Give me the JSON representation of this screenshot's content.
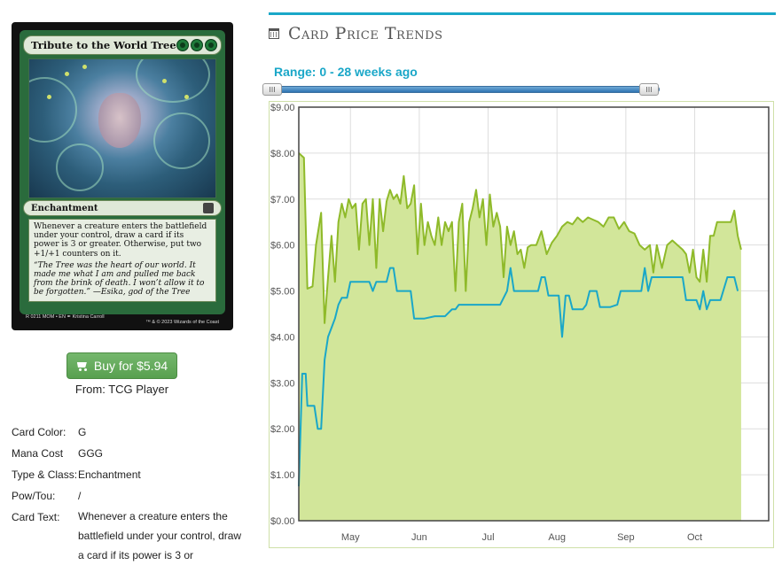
{
  "card_image": {
    "title": "Tribute to the World Tree",
    "type_line": "Enchantment",
    "rules_text": "Whenever a creature enters the battlefield under your control, draw a card if its power is 3 or greater. Otherwise, put two +1/+1 counters on it.",
    "flavor_text": "“The Tree was the heart of our world. It made me what I am and pulled me back from the brink of death. I won’t allow it to be forgotten.” —Esika, god of the Tree",
    "footer_left": "R 0211 MOM • EN ✒ Kristina Carroll",
    "footer_right": "™ & © 2023 Wizards of the Coast"
  },
  "buy": {
    "label": "Buy for $5.94",
    "source": "From: TCG Player",
    "button_color": "#5fa857"
  },
  "details": [
    {
      "key": "Card Color:",
      "value": "G"
    },
    {
      "key": "Mana Cost",
      "value": "GGG"
    },
    {
      "key": "Type & Class:",
      "value": "Enchantment"
    },
    {
      "key": "Pow/Tou:",
      "value": "/"
    },
    {
      "key": "Card Text:",
      "value": "Whenever a creature enters the battlefield under your control, draw a card if its power is 3 or"
    }
  ],
  "panel": {
    "title": "Card Price Trends",
    "range_text": "Range: 0 - 28 weeks ago",
    "accent": "#1aa7c8",
    "slider_min_weeks": 0,
    "slider_max_weeks": 28
  },
  "chart_data": {
    "type": "area",
    "ylim": [
      0,
      9
    ],
    "y_ticks": [
      "$0.00",
      "$1.00",
      "$2.00",
      "$3.00",
      "$4.00",
      "$5.00",
      "$6.00",
      "$7.00",
      "$8.00",
      "$9.00"
    ],
    "x_ticks": [
      {
        "label": "May",
        "x": 0.5
      },
      {
        "label": "Jun",
        "x": 4.5
      },
      {
        "label": "Jul",
        "x": 8.5
      },
      {
        "label": "Aug",
        "x": 12.5
      },
      {
        "label": "Sep",
        "x": 16.5
      },
      {
        "label": "Oct",
        "x": 20.5
      }
    ],
    "x_range": [
      -2.5,
      24.8
    ],
    "grid": true,
    "series": [
      {
        "color": "#8fba2a",
        "fill": "#d2e69a",
        "points": [
          [
            -2.5,
            8.0
          ],
          [
            -2.2,
            7.9
          ],
          [
            -2.0,
            5.05
          ],
          [
            -1.7,
            5.1
          ],
          [
            -1.5,
            6.0
          ],
          [
            -1.2,
            6.7
          ],
          [
            -1.0,
            4.3
          ],
          [
            -0.8,
            5.3
          ],
          [
            -0.6,
            6.2
          ],
          [
            -0.4,
            5.2
          ],
          [
            -0.2,
            6.5
          ],
          [
            0.0,
            6.9
          ],
          [
            0.2,
            6.6
          ],
          [
            0.4,
            7.0
          ],
          [
            0.6,
            6.8
          ],
          [
            0.8,
            6.9
          ],
          [
            1.0,
            5.9
          ],
          [
            1.2,
            6.9
          ],
          [
            1.4,
            7.0
          ],
          [
            1.6,
            6.0
          ],
          [
            1.8,
            7.0
          ],
          [
            2.0,
            5.5
          ],
          [
            2.2,
            7.0
          ],
          [
            2.4,
            6.3
          ],
          [
            2.6,
            6.95
          ],
          [
            2.8,
            7.2
          ],
          [
            3.0,
            7.0
          ],
          [
            3.2,
            7.1
          ],
          [
            3.4,
            6.9
          ],
          [
            3.6,
            7.5
          ],
          [
            3.8,
            6.8
          ],
          [
            4.0,
            6.9
          ],
          [
            4.2,
            7.3
          ],
          [
            4.4,
            5.8
          ],
          [
            4.6,
            6.9
          ],
          [
            4.8,
            6.0
          ],
          [
            5.0,
            6.5
          ],
          [
            5.2,
            6.2
          ],
          [
            5.4,
            6.0
          ],
          [
            5.6,
            6.6
          ],
          [
            5.8,
            6.0
          ],
          [
            6.0,
            6.5
          ],
          [
            6.2,
            6.3
          ],
          [
            6.4,
            6.5
          ],
          [
            6.6,
            5.0
          ],
          [
            6.8,
            6.5
          ],
          [
            7.0,
            6.9
          ],
          [
            7.2,
            5.0
          ],
          [
            7.4,
            6.5
          ],
          [
            7.6,
            6.8
          ],
          [
            7.8,
            7.2
          ],
          [
            8.0,
            6.6
          ],
          [
            8.2,
            7.0
          ],
          [
            8.4,
            6.0
          ],
          [
            8.6,
            7.1
          ],
          [
            8.8,
            6.4
          ],
          [
            9.0,
            6.7
          ],
          [
            9.2,
            6.4
          ],
          [
            9.4,
            5.3
          ],
          [
            9.6,
            6.4
          ],
          [
            9.8,
            6.0
          ],
          [
            10.0,
            6.3
          ],
          [
            10.2,
            5.8
          ],
          [
            10.4,
            5.9
          ],
          [
            10.6,
            5.5
          ],
          [
            10.8,
            5.95
          ],
          [
            11.0,
            6.0
          ],
          [
            11.3,
            6.0
          ],
          [
            11.6,
            6.3
          ],
          [
            11.9,
            5.8
          ],
          [
            12.2,
            6.05
          ],
          [
            12.5,
            6.2
          ],
          [
            12.8,
            6.4
          ],
          [
            13.1,
            6.5
          ],
          [
            13.4,
            6.45
          ],
          [
            13.7,
            6.6
          ],
          [
            14.0,
            6.5
          ],
          [
            14.3,
            6.6
          ],
          [
            14.6,
            6.55
          ],
          [
            14.9,
            6.5
          ],
          [
            15.2,
            6.4
          ],
          [
            15.5,
            6.6
          ],
          [
            15.8,
            6.6
          ],
          [
            16.1,
            6.35
          ],
          [
            16.4,
            6.5
          ],
          [
            16.7,
            6.3
          ],
          [
            17.0,
            6.25
          ],
          [
            17.3,
            6.0
          ],
          [
            17.6,
            5.9
          ],
          [
            17.9,
            6.0
          ],
          [
            18.1,
            5.4
          ],
          [
            18.3,
            6.0
          ],
          [
            18.6,
            5.5
          ],
          [
            18.9,
            6.0
          ],
          [
            19.2,
            6.1
          ],
          [
            19.5,
            6.0
          ],
          [
            19.8,
            5.9
          ],
          [
            20.0,
            5.8
          ],
          [
            20.2,
            5.4
          ],
          [
            20.4,
            5.9
          ],
          [
            20.6,
            5.3
          ],
          [
            20.8,
            5.2
          ],
          [
            21.0,
            5.9
          ],
          [
            21.2,
            5.2
          ],
          [
            21.4,
            6.2
          ],
          [
            21.6,
            6.2
          ],
          [
            21.8,
            6.5
          ],
          [
            22.0,
            6.5
          ],
          [
            22.3,
            6.5
          ],
          [
            22.6,
            6.5
          ],
          [
            22.8,
            6.75
          ],
          [
            23.0,
            6.2
          ],
          [
            23.2,
            5.9
          ]
        ]
      },
      {
        "color": "#1aa7c8",
        "points": [
          [
            -2.5,
            0.75
          ],
          [
            -2.3,
            3.2
          ],
          [
            -2.1,
            3.2
          ],
          [
            -2.0,
            2.5
          ],
          [
            -1.6,
            2.5
          ],
          [
            -1.4,
            2.0
          ],
          [
            -1.2,
            2.0
          ],
          [
            -1.0,
            3.5
          ],
          [
            -0.8,
            4.0
          ],
          [
            -0.6,
            4.2
          ],
          [
            -0.4,
            4.4
          ],
          [
            -0.2,
            4.7
          ],
          [
            0.0,
            4.85
          ],
          [
            0.3,
            4.85
          ],
          [
            0.5,
            5.2
          ],
          [
            1.0,
            5.2
          ],
          [
            1.6,
            5.2
          ],
          [
            1.8,
            5.0
          ],
          [
            2.0,
            5.2
          ],
          [
            2.6,
            5.2
          ],
          [
            2.8,
            5.5
          ],
          [
            3.0,
            5.5
          ],
          [
            3.2,
            5.0
          ],
          [
            3.8,
            5.0
          ],
          [
            4.0,
            5.0
          ],
          [
            4.2,
            4.4
          ],
          [
            4.8,
            4.4
          ],
          [
            5.4,
            4.45
          ],
          [
            6.0,
            4.45
          ],
          [
            6.4,
            4.6
          ],
          [
            6.6,
            4.6
          ],
          [
            6.8,
            4.7
          ],
          [
            7.2,
            4.7
          ],
          [
            7.8,
            4.7
          ],
          [
            8.4,
            4.7
          ],
          [
            8.8,
            4.7
          ],
          [
            9.2,
            4.7
          ],
          [
            9.6,
            5.0
          ],
          [
            9.8,
            5.5
          ],
          [
            10.0,
            5.0
          ],
          [
            10.4,
            5.0
          ],
          [
            10.8,
            5.0
          ],
          [
            11.4,
            5.0
          ],
          [
            11.6,
            5.3
          ],
          [
            11.8,
            5.3
          ],
          [
            12.0,
            4.9
          ],
          [
            12.6,
            4.9
          ],
          [
            12.8,
            4.0
          ],
          [
            13.0,
            4.9
          ],
          [
            13.2,
            4.9
          ],
          [
            13.4,
            4.6
          ],
          [
            13.8,
            4.6
          ],
          [
            14.0,
            4.6
          ],
          [
            14.2,
            4.7
          ],
          [
            14.4,
            5.0
          ],
          [
            14.8,
            5.0
          ],
          [
            15.0,
            4.65
          ],
          [
            15.6,
            4.65
          ],
          [
            16.0,
            4.7
          ],
          [
            16.2,
            5.0
          ],
          [
            16.8,
            5.0
          ],
          [
            17.4,
            5.0
          ],
          [
            17.6,
            5.5
          ],
          [
            17.8,
            5.0
          ],
          [
            18.0,
            5.3
          ],
          [
            18.4,
            5.3
          ],
          [
            18.8,
            5.3
          ],
          [
            19.2,
            5.3
          ],
          [
            19.6,
            5.3
          ],
          [
            19.8,
            5.3
          ],
          [
            20.0,
            4.8
          ],
          [
            20.6,
            4.8
          ],
          [
            20.8,
            4.6
          ],
          [
            21.0,
            5.0
          ],
          [
            21.2,
            4.6
          ],
          [
            21.4,
            4.8
          ],
          [
            22.0,
            4.8
          ],
          [
            22.4,
            5.3
          ],
          [
            22.8,
            5.3
          ],
          [
            23.0,
            5.0
          ]
        ]
      }
    ]
  }
}
